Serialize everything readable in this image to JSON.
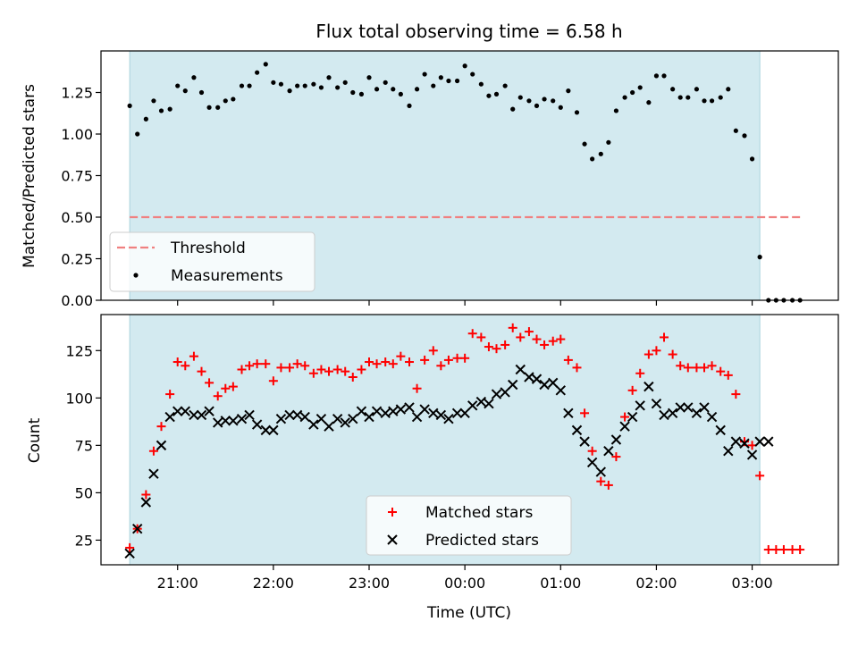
{
  "chart_data": [
    {
      "type": "scatter",
      "panel": "top",
      "title": "Flux total observing time = 6.58 h",
      "xlabel": "",
      "ylabel": "Matched/Predicted stars",
      "ylim": [
        0,
        1.5
      ],
      "yticks": [
        0.0,
        0.25,
        0.5,
        0.75,
        1.0,
        1.25
      ],
      "ytick_labels": [
        "0.00",
        "0.25",
        "0.50",
        "0.75",
        "1.00",
        "1.25"
      ],
      "xlim": [
        20.2,
        3.9
      ],
      "observing_window": [
        20.5,
        3.08
      ],
      "window_color": "#d3eaf0",
      "legend": {
        "placement": "lower-left",
        "entries": [
          "Threshold",
          "Measurements"
        ]
      },
      "threshold": {
        "name": "Threshold",
        "value": 0.5,
        "x_range": [
          20.5,
          3.5
        ],
        "color": "#f08080",
        "style": "dashed"
      },
      "series": [
        {
          "name": "Measurements",
          "color": "#000000",
          "marker": "dot",
          "x": [
            20.5,
            20.58,
            20.67,
            20.75,
            20.83,
            20.92,
            21.0,
            21.08,
            21.17,
            21.25,
            21.33,
            21.42,
            21.5,
            21.58,
            21.67,
            21.75,
            21.83,
            21.92,
            22.0,
            22.08,
            22.17,
            22.25,
            22.33,
            22.42,
            22.5,
            22.58,
            22.67,
            22.75,
            22.83,
            22.92,
            23.0,
            23.08,
            23.17,
            23.25,
            23.33,
            23.42,
            23.5,
            23.58,
            23.67,
            23.75,
            23.83,
            23.92,
            24.0,
            24.08,
            24.17,
            24.25,
            24.33,
            24.42,
            24.5,
            24.58,
            24.67,
            24.75,
            24.83,
            24.92,
            25.0,
            25.08,
            25.17,
            25.25,
            25.33,
            25.42,
            25.5,
            25.58,
            25.67,
            25.75,
            25.83,
            25.92,
            26.0,
            26.08,
            26.17,
            26.25,
            26.33,
            26.42,
            26.5,
            26.58,
            26.67,
            26.75,
            26.83,
            26.92,
            27.0,
            27.08,
            27.17,
            27.25,
            27.33,
            27.42,
            27.5
          ],
          "y": [
            1.17,
            1.0,
            1.09,
            1.2,
            1.14,
            1.15,
            1.29,
            1.26,
            1.34,
            1.25,
            1.16,
            1.16,
            1.2,
            1.21,
            1.29,
            1.29,
            1.37,
            1.42,
            1.31,
            1.3,
            1.26,
            1.29,
            1.29,
            1.3,
            1.28,
            1.34,
            1.28,
            1.31,
            1.25,
            1.24,
            1.34,
            1.27,
            1.31,
            1.27,
            1.24,
            1.17,
            1.27,
            1.36,
            1.29,
            1.34,
            1.32,
            1.32,
            1.41,
            1.36,
            1.3,
            1.23,
            1.24,
            1.29,
            1.15,
            1.22,
            1.2,
            1.17,
            1.21,
            1.2,
            1.16,
            1.26,
            1.13,
            0.94,
            0.85,
            0.88,
            0.95,
            1.14,
            1.22,
            1.25,
            1.28,
            1.19,
            1.35,
            1.35,
            1.27,
            1.22,
            1.22,
            1.27,
            1.2,
            1.2,
            1.22,
            1.27,
            1.02,
            0.99,
            0.85,
            0.26,
            0.0,
            0.0,
            0.0,
            0.0,
            0.0
          ]
        }
      ]
    },
    {
      "type": "scatter",
      "panel": "bottom",
      "title": "",
      "xlabel": "Time (UTC)",
      "ylabel": "Count",
      "ylim": [
        12,
        144
      ],
      "yticks": [
        25,
        50,
        75,
        100,
        125
      ],
      "ytick_labels": [
        "25",
        "50",
        "75",
        "100",
        "125"
      ],
      "xlim": [
        20.2,
        3.9
      ],
      "xticks": [
        21,
        22,
        23,
        24,
        25,
        26,
        27
      ],
      "xtick_labels": [
        "21:00",
        "22:00",
        "23:00",
        "00:00",
        "01:00",
        "02:00",
        "03:00"
      ],
      "observing_window": [
        20.5,
        3.08
      ],
      "window_color": "#d3eaf0",
      "legend": {
        "placement": "lower-center",
        "entries": [
          "Matched stars",
          "Predicted stars"
        ]
      },
      "series": [
        {
          "name": "Matched stars",
          "color": "#ff0000",
          "marker": "plus",
          "x": [
            20.5,
            20.58,
            20.67,
            20.75,
            20.83,
            20.92,
            21.0,
            21.08,
            21.17,
            21.25,
            21.33,
            21.42,
            21.5,
            21.58,
            21.67,
            21.75,
            21.83,
            21.92,
            22.0,
            22.08,
            22.17,
            22.25,
            22.33,
            22.42,
            22.5,
            22.58,
            22.67,
            22.75,
            22.83,
            22.92,
            23.0,
            23.08,
            23.17,
            23.25,
            23.33,
            23.42,
            23.5,
            23.58,
            23.67,
            23.75,
            23.83,
            23.92,
            24.0,
            24.08,
            24.17,
            24.25,
            24.33,
            24.42,
            24.5,
            24.58,
            24.67,
            24.75,
            24.83,
            24.92,
            25.0,
            25.08,
            25.17,
            25.25,
            25.33,
            25.42,
            25.5,
            25.58,
            25.67,
            25.75,
            25.83,
            25.92,
            26.0,
            26.08,
            26.17,
            26.25,
            26.33,
            26.42,
            26.5,
            26.58,
            26.67,
            26.75,
            26.83,
            26.92,
            27.0,
            27.08,
            27.17,
            27.25,
            27.33,
            27.42,
            27.5
          ],
          "y": [
            21,
            31,
            49,
            72,
            85,
            102,
            119,
            117,
            122,
            114,
            108,
            101,
            105,
            106,
            115,
            117,
            118,
            118,
            109,
            116,
            116,
            118,
            117,
            113,
            115,
            114,
            115,
            114,
            111,
            115,
            119,
            118,
            119,
            118,
            122,
            119,
            105,
            120,
            125,
            117,
            120,
            121,
            121,
            134,
            132,
            127,
            126,
            128,
            137,
            132,
            135,
            131,
            128,
            130,
            131,
            120,
            116,
            92,
            72,
            56,
            54,
            69,
            90,
            104,
            113,
            123,
            125,
            132,
            123,
            117,
            116,
            116,
            116,
            117,
            114,
            112,
            102,
            77,
            75,
            59,
            20,
            20,
            20,
            20,
            20
          ]
        },
        {
          "name": "Predicted stars",
          "color": "#000000",
          "marker": "x",
          "x": [
            20.5,
            20.58,
            20.67,
            20.75,
            20.83,
            20.92,
            21.0,
            21.08,
            21.17,
            21.25,
            21.33,
            21.42,
            21.5,
            21.58,
            21.67,
            21.75,
            21.83,
            21.92,
            22.0,
            22.08,
            22.17,
            22.25,
            22.33,
            22.42,
            22.5,
            22.58,
            22.67,
            22.75,
            22.83,
            22.92,
            23.0,
            23.08,
            23.17,
            23.25,
            23.33,
            23.42,
            23.5,
            23.58,
            23.67,
            23.75,
            23.83,
            23.92,
            24.0,
            24.08,
            24.17,
            24.25,
            24.33,
            24.42,
            24.5,
            24.58,
            24.67,
            24.75,
            24.83,
            24.92,
            25.0,
            25.08,
            25.17,
            25.25,
            25.33,
            25.42,
            25.5,
            25.58,
            25.67,
            25.75,
            25.83,
            25.92,
            26.0,
            26.08,
            26.17,
            26.25,
            26.33,
            26.42,
            26.5,
            26.58,
            26.67,
            26.75,
            26.83,
            26.92,
            27.0,
            27.08,
            27.17
          ],
          "y": [
            18,
            31,
            45,
            60,
            75,
            90,
            93,
            93,
            91,
            91,
            93,
            87,
            88,
            88,
            89,
            91,
            86,
            83,
            83,
            89,
            91,
            91,
            90,
            86,
            89,
            85,
            89,
            87,
            89,
            93,
            90,
            93,
            92,
            93,
            94,
            95,
            90,
            94,
            92,
            91,
            89,
            92,
            92,
            96,
            98,
            97,
            102,
            103,
            107,
            115,
            111,
            110,
            107,
            108,
            104,
            92,
            83,
            77,
            66,
            61,
            72,
            78,
            85,
            90,
            96,
            106,
            97,
            91,
            92,
            95,
            95,
            92,
            95,
            90,
            83,
            72,
            77,
            76,
            70,
            77,
            77
          ]
        }
      ]
    }
  ]
}
